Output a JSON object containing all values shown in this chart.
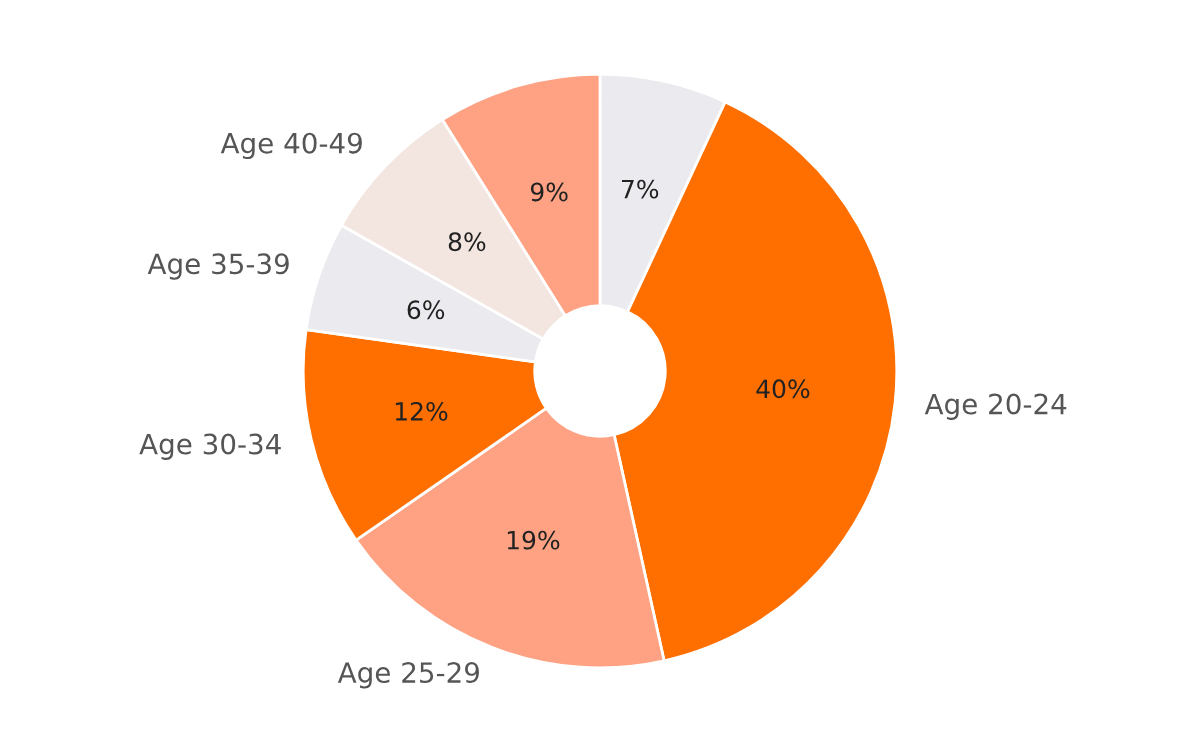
{
  "chart_data": {
    "type": "donut",
    "categories": [
      null,
      "Age 20-24",
      "Age 25-29",
      "Age 30-34",
      "Age 35-39",
      "Age 40-49",
      null
    ],
    "values": [
      7,
      40,
      19,
      12,
      6,
      8,
      9
    ],
    "value_labels": [
      "7%",
      "40%",
      "19%",
      "12%",
      "6%",
      "8%",
      "9%"
    ],
    "colors": [
      "#ebebef",
      "#ff6f00",
      "#ffa283",
      "#ff6f00",
      "#ebebef",
      "#f3e6e1",
      "#ffa283"
    ],
    "legend": false
  }
}
